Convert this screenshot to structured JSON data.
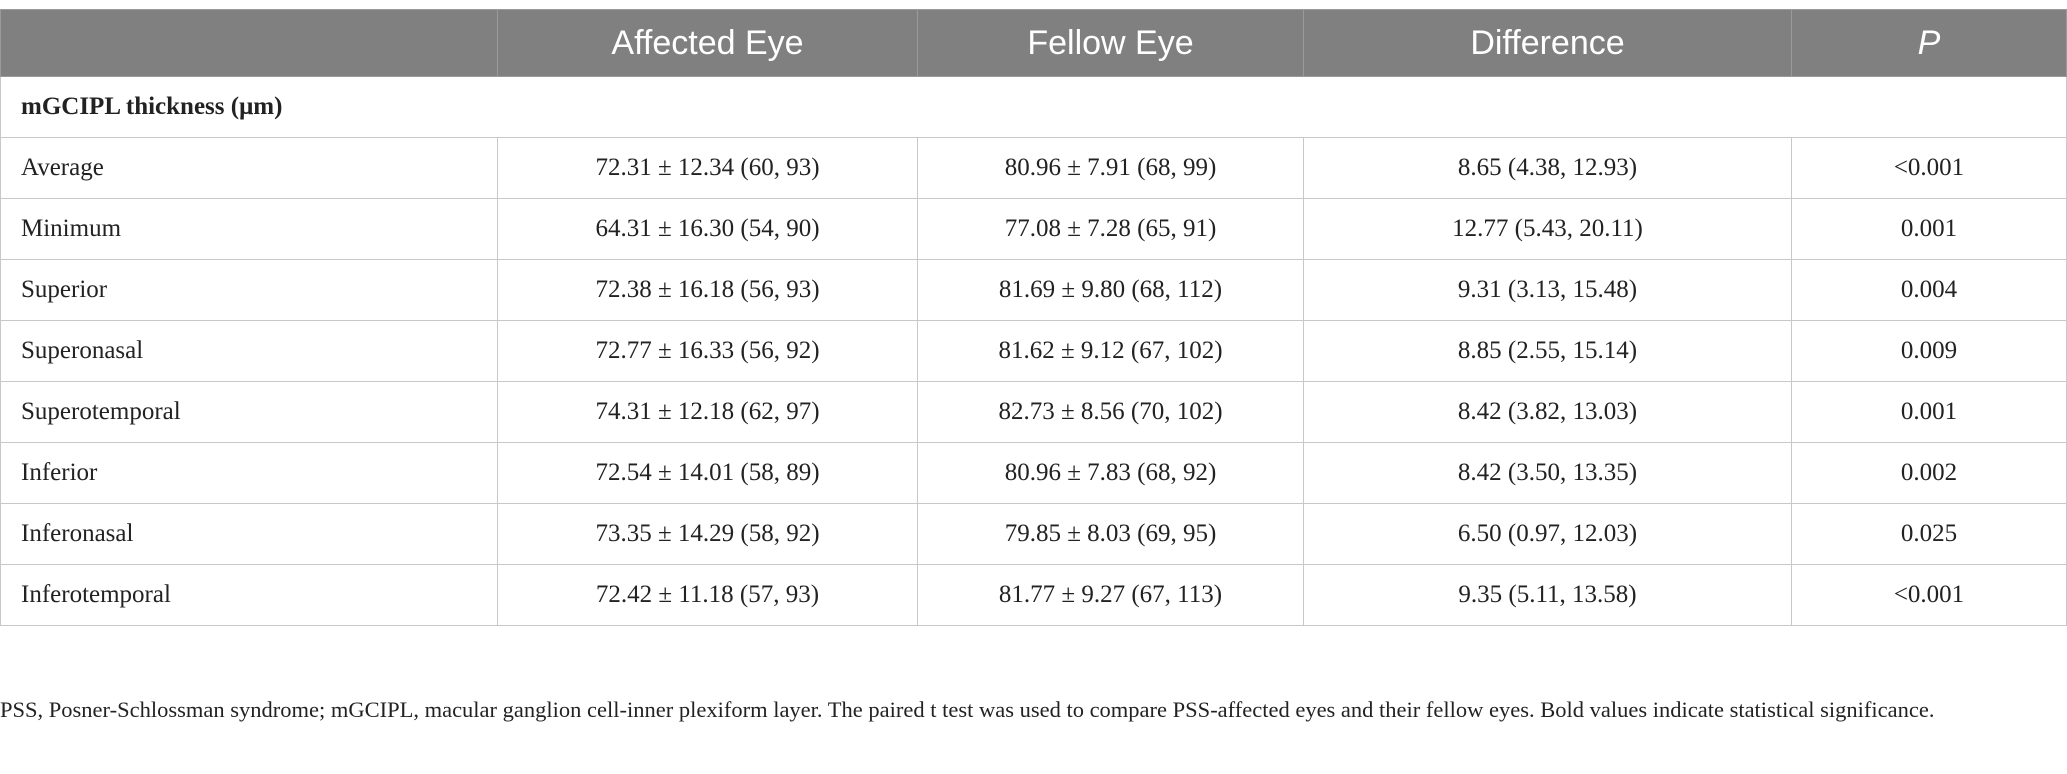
{
  "table": {
    "headers": [
      "",
      "Affected Eye",
      "Fellow Eye",
      "Difference",
      "P"
    ],
    "section_label": "mGCIPL thickness (μm)",
    "rows": [
      {
        "label": "Average",
        "affected": "72.31 ± 12.34 (60, 93)",
        "fellow": "80.96 ± 7.91 (68, 99)",
        "difference": "8.65 (4.38, 12.93)",
        "p": "<0.001"
      },
      {
        "label": "Minimum",
        "affected": "64.31 ± 16.30 (54, 90)",
        "fellow": "77.08 ± 7.28 (65, 91)",
        "difference": "12.77 (5.43, 20.11)",
        "p": "0.001"
      },
      {
        "label": "Superior",
        "affected": "72.38 ± 16.18 (56, 93)",
        "fellow": "81.69 ± 9.80 (68, 112)",
        "difference": "9.31 (3.13, 15.48)",
        "p": "0.004"
      },
      {
        "label": "Superonasal",
        "affected": "72.77 ± 16.33 (56, 92)",
        "fellow": "81.62 ± 9.12 (67, 102)",
        "difference": "8.85 (2.55, 15.14)",
        "p": "0.009"
      },
      {
        "label": "Superotemporal",
        "affected": "74.31 ± 12.18 (62, 97)",
        "fellow": "82.73 ± 8.56 (70, 102)",
        "difference": "8.42 (3.82, 13.03)",
        "p": "0.001"
      },
      {
        "label": "Inferior",
        "affected": "72.54 ± 14.01 (58, 89)",
        "fellow": "80.96 ± 7.83 (68, 92)",
        "difference": "8.42 (3.50, 13.35)",
        "p": "0.002"
      },
      {
        "label": "Inferonasal",
        "affected": "73.35 ± 14.29 (58, 92)",
        "fellow": "79.85 ± 8.03 (69, 95)",
        "difference": "6.50 (0.97, 12.03)",
        "p": "0.025"
      },
      {
        "label": "Inferotemporal",
        "affected": "72.42 ± 11.18 (57, 93)",
        "fellow": "81.77 ± 9.27 (67, 113)",
        "difference": "9.35 (5.11, 13.58)",
        "p": "<0.001"
      }
    ]
  },
  "footnote": "PSS, Posner-Schlossman syndrome; mGCIPL, macular ganglion cell-inner plexiform layer. The paired t test was used to compare PSS-affected eyes and their fellow eyes. Bold values indicate statistical significance.",
  "colors": {
    "header_bg": "#808080",
    "header_text": "#ffffff",
    "border": "#c8c8c8",
    "text": "#222222"
  }
}
